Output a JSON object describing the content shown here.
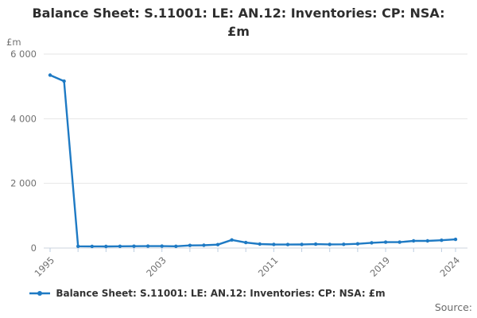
{
  "title": {
    "full": "Balance Sheet: S.11001: LE: AN.12: Inventories: CP: NSA: £m",
    "lines": [
      "Balance Sheet: S.11001: LE: AN.12: Inventories: CP: NSA:",
      "£m"
    ]
  },
  "y_axis": {
    "unit_label": "£m",
    "ticks": [
      {
        "value": 6000,
        "label": "6 000"
      },
      {
        "value": 4000,
        "label": "4 000"
      },
      {
        "value": 2000,
        "label": "2 000"
      },
      {
        "value": 0,
        "label": "0"
      }
    ]
  },
  "x_axis": {
    "start_year": 1995,
    "end_year": 2024,
    "minor_tick_step": 2,
    "labeled_ticks": [
      {
        "year": 1995,
        "label": "1995"
      },
      {
        "year": 2003,
        "label": "2003"
      },
      {
        "year": 2011,
        "label": "2011"
      },
      {
        "year": 2019,
        "label": "2019"
      },
      {
        "year": 2024,
        "label": "2024"
      }
    ]
  },
  "chart_data": {
    "type": "line",
    "title": "Balance Sheet: S.11001: LE: AN.12: Inventories: CP: NSA: £m",
    "xlabel": "",
    "ylabel": "£m",
    "ylim": [
      0,
      6000
    ],
    "xlim": [
      1995,
      2024
    ],
    "grid": "horizontal",
    "legend_position": "bottom",
    "x": [
      1995,
      1996,
      1997,
      1998,
      1999,
      2000,
      2001,
      2002,
      2003,
      2004,
      2005,
      2006,
      2007,
      2008,
      2009,
      2010,
      2011,
      2012,
      2013,
      2014,
      2015,
      2016,
      2017,
      2018,
      2019,
      2020,
      2021,
      2022,
      2023,
      2024
    ],
    "series": [
      {
        "name": "Balance Sheet: S.11001: LE: AN.12: Inventories: CP: NSA: £m",
        "color": "#1e7ac4",
        "marker": "circle",
        "values": [
          5349,
          5161,
          55,
          52,
          50,
          53,
          57,
          60,
          58,
          55,
          80,
          85,
          106,
          250,
          170,
          123,
          111,
          107,
          111,
          121,
          112,
          115,
          131,
          163,
          181,
          181,
          221,
          222,
          241,
          269
        ]
      }
    ]
  },
  "legend": {
    "label": "Balance Sheet: S.11001: LE: AN.12: Inventories: CP: NSA: £m",
    "marker_color": "#1e7ac4"
  },
  "source": {
    "label": "Source:"
  },
  "colors": {
    "line": "#1e7ac4",
    "gridline": "#e6e6e6",
    "axis_line": "#cdd3dd",
    "tick": "#bccde0",
    "axis_text": "#707070",
    "title_text": "#2e2e2e"
  }
}
